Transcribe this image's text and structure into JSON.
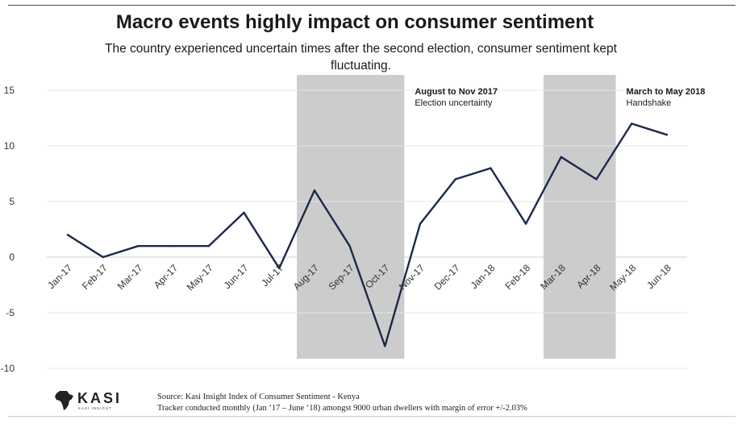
{
  "slide": {
    "title": "Macro events highly impact on consumer sentiment",
    "subtitle": "The country experienced uncertain times after the second election, consumer sentiment kept fluctuating.",
    "source_line1": "Source: Kasi Insight Index of Consumer Sentiment - Kenya",
    "source_line2": "Tracker conducted monthly (Jan ‘17 – June ‘18) amongst 9000 urban dwellers with margin of error +/-2.03%",
    "logo_text": "KASI",
    "logo_tagline": "KASI INSIGHT"
  },
  "chart_data": {
    "type": "line",
    "title": "Macro events highly impact on consumer sentiment",
    "xlabel": "",
    "ylabel": "",
    "ylim": [
      -10,
      15
    ],
    "yticks": [
      -10,
      -5,
      0,
      5,
      10,
      15
    ],
    "ytick_labels": [
      "-10",
      "-5",
      "0",
      "5",
      "10",
      "15"
    ],
    "grid": true,
    "categories": [
      "Jan-17",
      "Feb-17",
      "Mar-17",
      "Apr-17",
      "May-17",
      "Jun-17",
      "Jul-17",
      "Aug-17",
      "Sep-17",
      "Oct-17",
      "Nov-17",
      "Dec-17",
      "Jan-18",
      "Feb-18",
      "Mar-18",
      "Apr-18",
      "May-18",
      "Jun-18"
    ],
    "series": [
      {
        "name": "Consumer sentiment",
        "color": "#1b2a4a",
        "values": [
          2,
          0,
          1,
          1,
          1,
          4,
          -1,
          6,
          1,
          -8,
          3,
          7,
          8,
          3,
          9,
          7,
          12,
          11
        ]
      }
    ],
    "shaded_periods": [
      {
        "start": "Aug-17",
        "end": "Oct-17",
        "label_bold": "August to Nov 2017",
        "label": "Election uncertainty",
        "color": "#cccccc"
      },
      {
        "start": "Mar-18",
        "end": "Apr-18",
        "label_bold": "March to May 2018",
        "label": "Handshake",
        "color": "#cccccc"
      }
    ]
  }
}
